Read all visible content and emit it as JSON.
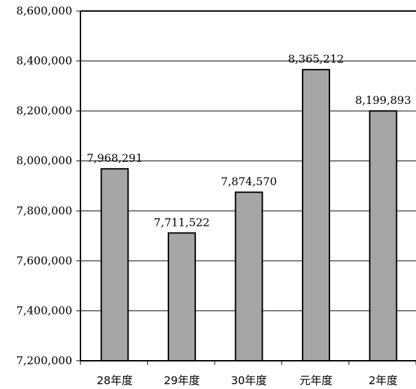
{
  "chart_data": {
    "type": "bar",
    "title": "",
    "xlabel": "",
    "ylabel": "",
    "categories": [
      "28年度",
      "29年度",
      "30年度",
      "元年度",
      "2年度"
    ],
    "values": [
      7968291,
      7711522,
      7874570,
      8365212,
      8199893
    ],
    "data_labels": [
      "7,968,291",
      "7,711,522",
      "7,874,570",
      "8,365,212",
      "8,199,893"
    ],
    "ylim": [
      7200000,
      8600000
    ],
    "yticks": [
      7200000,
      7400000,
      7600000,
      7800000,
      8000000,
      8200000,
      8400000,
      8600000
    ],
    "ytick_labels": [
      "7,200,000",
      "7,400,000",
      "7,600,000",
      "7,800,000",
      "8,000,000",
      "8,200,000",
      "8,400,000",
      "8,600,000"
    ],
    "grid": true,
    "legend": "none",
    "colors": {
      "bar_fill": "#a6a6a6",
      "bar_stroke": "#000000",
      "grid": "#000000",
      "axis": "#000000"
    }
  }
}
